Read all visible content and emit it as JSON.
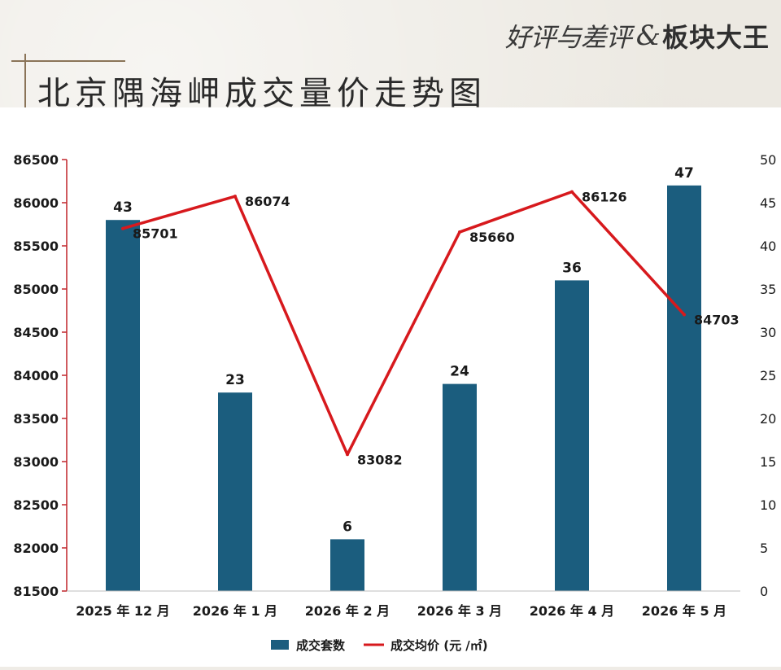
{
  "logo": {
    "script_text": "好评与差评",
    "amp": "&",
    "bold_text": "板块大王"
  },
  "title": "北京隅海岬成交量价走势图",
  "colors": {
    "bar": "#1b5d7e",
    "line": "#d7191d",
    "axis_left": "#c0252a",
    "text": "#1a1a1a"
  },
  "chart_data": {
    "type": "bar",
    "categories": [
      "2025 年 12 月",
      "2026 年 1 月",
      "2026 年 2 月",
      "2026 年 3 月",
      "2026 年 4 月",
      "2026 年 5 月"
    ],
    "series": [
      {
        "name": "成交套数",
        "type": "bar",
        "axis": "right",
        "values": [
          43,
          23,
          6,
          24,
          36,
          47
        ]
      },
      {
        "name": "成交均价 (元 /㎡)",
        "type": "line",
        "axis": "left",
        "values": [
          85701,
          86074,
          83082,
          85660,
          86126,
          84703
        ]
      }
    ],
    "y_left": {
      "lim": [
        81500,
        86500
      ],
      "ticks": [
        "81500",
        "82000",
        "82500",
        "83000",
        "83500",
        "84000",
        "84500",
        "85000",
        "85500",
        "86000",
        "86500"
      ]
    },
    "y_right": {
      "lim": [
        0,
        50
      ],
      "ticks": [
        "0",
        "5",
        "10",
        "15",
        "20",
        "25",
        "30",
        "35",
        "40",
        "45",
        "50"
      ]
    },
    "legend": "bottom-center",
    "grid": false
  }
}
